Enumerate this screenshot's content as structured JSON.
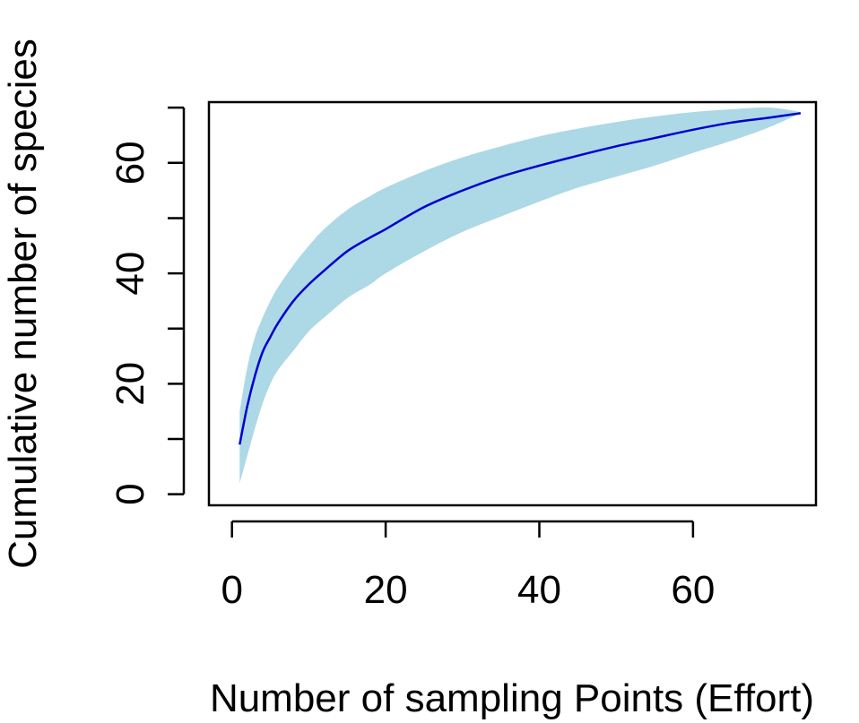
{
  "chart_data": {
    "type": "area",
    "title": "",
    "xlabel": "Number of sampling Points (Effort)",
    "ylabel": "Cumulative number of species",
    "xlim": [
      -3,
      76
    ],
    "ylim": [
      -2,
      71
    ],
    "x_ticks": [
      0,
      20,
      40,
      60
    ],
    "x_tick_labels": [
      "0",
      "20",
      "40",
      "60"
    ],
    "y_ticks": [
      0,
      10,
      20,
      30,
      40,
      50,
      60,
      70
    ],
    "y_tick_labels": [
      "0",
      "",
      "20",
      "",
      "40",
      "",
      "60",
      ""
    ],
    "grid": false,
    "legend": "none",
    "colors": {
      "band": "#add8e6",
      "line": "#0000cd",
      "axis": "#000000"
    },
    "x": [
      1,
      2,
      3,
      4,
      5,
      6,
      8,
      10,
      12,
      15,
      18,
      20,
      25,
      30,
      35,
      40,
      45,
      50,
      55,
      60,
      65,
      70,
      74
    ],
    "series": [
      {
        "role": "mean",
        "values": [
          9,
          16,
          21.5,
          25.8,
          28.5,
          31,
          35,
          38,
          40.5,
          44,
          46.5,
          48,
          52,
          55,
          57.5,
          59.5,
          61.3,
          63,
          64.5,
          66,
          67.3,
          68.2,
          69
        ]
      },
      {
        "role": "upper",
        "values": [
          15,
          23,
          28.5,
          32,
          35,
          37.5,
          41.5,
          45,
          48,
          51.5,
          54,
          55.5,
          58.5,
          61,
          63,
          64.8,
          66.2,
          67.4,
          68.4,
          69.2,
          69.7,
          70,
          69.2
        ]
      },
      {
        "role": "lower",
        "values": [
          2,
          7,
          12,
          16.5,
          20,
          22.5,
          26,
          29.5,
          32,
          35.5,
          38,
          40,
          44,
          47.5,
          50.3,
          53,
          55.5,
          57.5,
          59.5,
          61.8,
          64,
          66.5,
          69
        ]
      }
    ]
  }
}
